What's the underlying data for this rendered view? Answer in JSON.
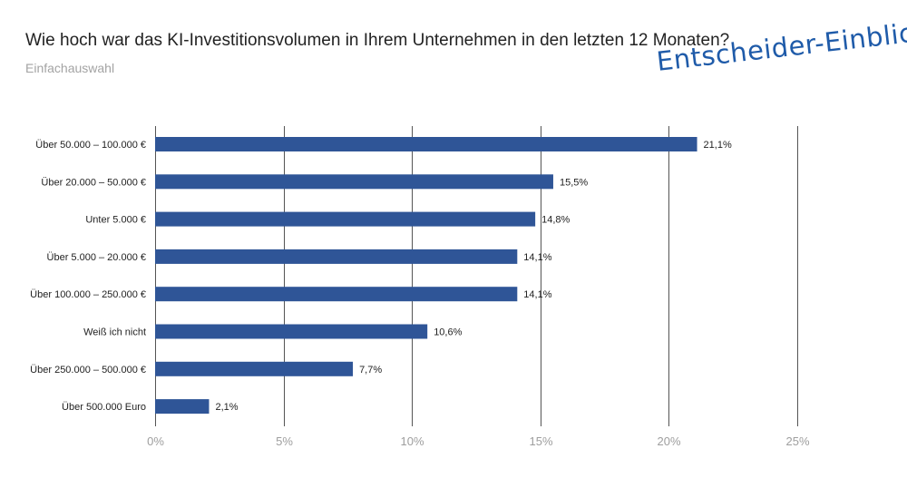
{
  "header": {
    "question": "Wie hoch war das KI-Investitionsvolumen in Ihrem Unternehmen in den letzten 12 Monaten?",
    "subtitle": "Einfachauswahl",
    "brand": "Entscheider-Einblick"
  },
  "colors": {
    "bar": "#2f5597",
    "grid": "#555555",
    "tick_text": "#9e9e9e",
    "brand": "#1f5ba9"
  },
  "chart_data": {
    "type": "bar",
    "orientation": "horizontal",
    "categories": [
      "Über 50.000 – 100.000 €",
      "Über 20.000 – 50.000 €",
      "Unter 5.000 €",
      "Über 5.000 – 20.000 €",
      "Über 100.000 – 250.000 €",
      "Weiß ich nicht",
      "Über 250.000 – 500.000 €",
      "Über 500.000 Euro"
    ],
    "values": [
      21.1,
      15.5,
      14.8,
      14.1,
      14.1,
      10.6,
      7.7,
      2.1
    ],
    "value_labels": [
      "21,1%",
      "15,5%",
      "14,8%",
      "14,1%",
      "14,1%",
      "10,6%",
      "7,7%",
      "2,1%"
    ],
    "xlim": [
      0,
      25
    ],
    "xticks": [
      0,
      5,
      10,
      15,
      20,
      25
    ],
    "xtick_labels": [
      "0%",
      "5%",
      "10%",
      "15%",
      "20%",
      "25%"
    ],
    "grid": true
  }
}
